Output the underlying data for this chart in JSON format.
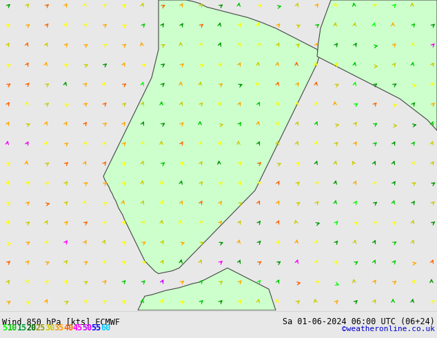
{
  "title_left": "Wind 850 hPa [kts] ECMWF",
  "title_right": "Sa 01-06-2024 06:00 UTC (06+24)",
  "credit": "©weatheronline.co.uk",
  "legend_values": [
    "5",
    "10",
    "15",
    "20",
    "25",
    "30",
    "35",
    "40",
    "45",
    "50",
    "55",
    "60"
  ],
  "legend_colors": [
    "#00ff00",
    "#00cc00",
    "#009900",
    "#006600",
    "#999900",
    "#cccc00",
    "#ff9900",
    "#ff6600",
    "#ff00ff",
    "#cc00ff",
    "#0000ff",
    "#00ccff"
  ],
  "bg_map_color": "#e8e8e8",
  "land_color": "#ccffcc",
  "sea_color": "#e8e8e8",
  "bottom_bar_color": "#ffffff",
  "text_color": "#000000",
  "title_fontsize": 8.5,
  "legend_fontsize": 8.5,
  "fig_width": 6.34,
  "fig_height": 4.9,
  "dpi": 100
}
